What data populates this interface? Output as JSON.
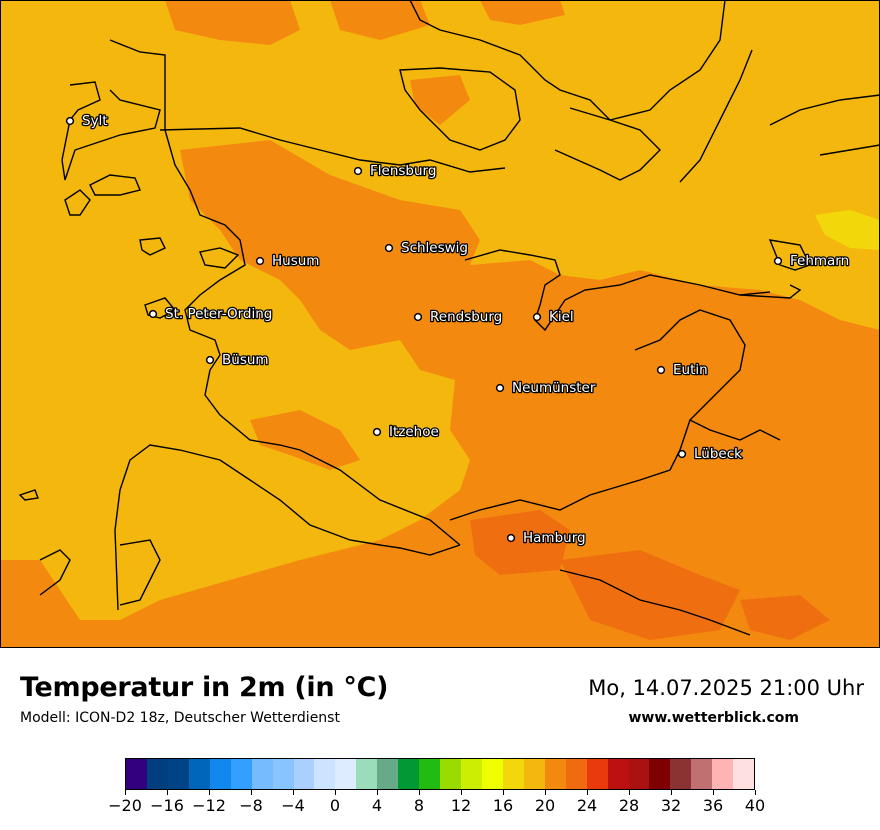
{
  "map": {
    "colors": {
      "warm": "#f4b70e",
      "warmer": "#f38a0f",
      "hot": "#ef6f10",
      "cool_spot": "#f2d80b",
      "coastline": "#000000"
    },
    "cities": [
      {
        "name": "Sylt"
      },
      {
        "name": "Flensburg"
      },
      {
        "name": "Schleswig"
      },
      {
        "name": "Husum"
      },
      {
        "name": "Fehmarn"
      },
      {
        "name": "St. Peter-Ording"
      },
      {
        "name": "Rendsburg"
      },
      {
        "name": "Kiel"
      },
      {
        "name": "Büsum"
      },
      {
        "name": "Eutin"
      },
      {
        "name": "Neumünster"
      },
      {
        "name": "Itzehoe"
      },
      {
        "name": "Lübeck"
      },
      {
        "name": "Hamburg"
      }
    ]
  },
  "footer": {
    "title": "Temperatur in 2m (in °C)",
    "subtitle": "Modell: ICON-D2 18z, Deutscher Wetterdienst",
    "datetime": "Mo, 14.07.2025 21:00 Uhr",
    "website": "www.wetterblick.com"
  },
  "legend": {
    "colors": [
      "#33007f",
      "#003f7f",
      "#004488",
      "#0066bb",
      "#1188ee",
      "#33a0ff",
      "#77bbff",
      "#88c4ff",
      "#aad0ff",
      "#cce4ff",
      "#ddecff",
      "#99ddbb",
      "#66aa88",
      "#009933",
      "#22bb11",
      "#99dd00",
      "#ccee00",
      "#eeff00",
      "#f2d80b",
      "#f4b70e",
      "#f38a0f",
      "#f06a10",
      "#e83a0a",
      "#bb1111",
      "#aa1111",
      "#7f0000",
      "#8b3333",
      "#c07070",
      "#ffb4b4",
      "#ffe0e0"
    ],
    "tick_labels": [
      "−20",
      "−16",
      "−12",
      "−8",
      "−4",
      "0",
      "4",
      "8",
      "12",
      "16",
      "20",
      "24",
      "28",
      "32",
      "36",
      "40"
    ]
  }
}
